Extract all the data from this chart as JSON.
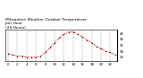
{
  "title": "Milwaukee Weather Outdoor Temperature\nper Hour\n(24 Hours)",
  "hours": [
    0,
    1,
    2,
    3,
    4,
    5,
    6,
    7,
    8,
    9,
    10,
    11,
    12,
    13,
    14,
    15,
    16,
    17,
    18,
    19,
    20,
    21,
    22,
    23
  ],
  "temps": [
    28,
    27,
    26,
    26,
    25,
    25,
    25,
    26,
    29,
    33,
    37,
    41,
    44,
    46,
    46,
    44,
    42,
    39,
    37,
    34,
    32,
    30,
    29,
    27
  ],
  "line_color": "#ff0000",
  "marker_color": "#000000",
  "grid_color": "#888888",
  "bg_color": "#ffffff",
  "title_fontsize": 3.2,
  "tick_fontsize": 2.8,
  "ylim": [
    22,
    48
  ],
  "yticks": [
    25,
    30,
    35,
    40,
    45
  ],
  "xlim": [
    -0.5,
    23.5
  ]
}
